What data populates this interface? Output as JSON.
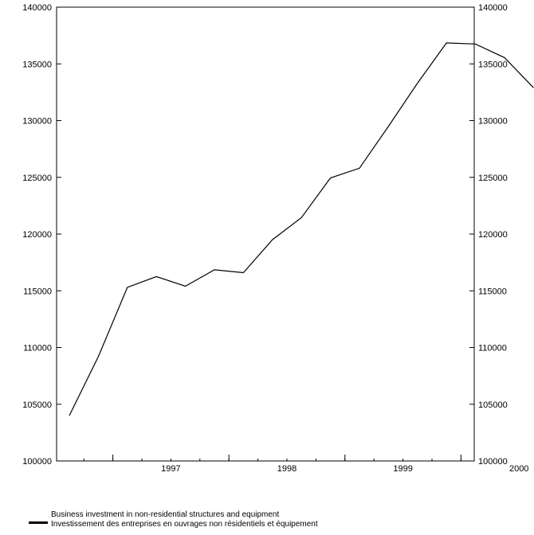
{
  "chart_data": {
    "type": "line",
    "x": [
      "1996Q3",
      "1996Q4",
      "1997Q1",
      "1997Q2",
      "1997Q3",
      "1997Q4",
      "1998Q1",
      "1998Q2",
      "1998Q3",
      "1998Q4",
      "1999Q1",
      "1999Q2",
      "1999Q3",
      "1999Q4",
      "2000Q1",
      "2000Q2",
      "2000Q3"
    ],
    "series": [
      {
        "name": "Business investment in non-residential structures and equipment",
        "values": [
          104000,
          109200,
          115300,
          116250,
          115400,
          116850,
          116600,
          119500,
          121450,
          124950,
          125800,
          129500,
          133300,
          136850,
          136750,
          135550,
          132900
        ]
      }
    ],
    "year_labels": [
      "1997",
      "1998",
      "1999",
      "2000"
    ],
    "ylim": [
      100000,
      140000
    ],
    "yticks": [
      "100000",
      "105000",
      "110000",
      "115000",
      "120000",
      "125000",
      "130000",
      "135000",
      "140000"
    ],
    "title": "",
    "xlabel": "",
    "ylabel": "",
    "legend_position": "bottom-left",
    "grid": false,
    "line_color": "#000000"
  },
  "legend": {
    "line1": "Business investment in non-residential structures and equipment",
    "line2": "Investissement des entreprises en ouvrages non résidentiels et équipement"
  }
}
